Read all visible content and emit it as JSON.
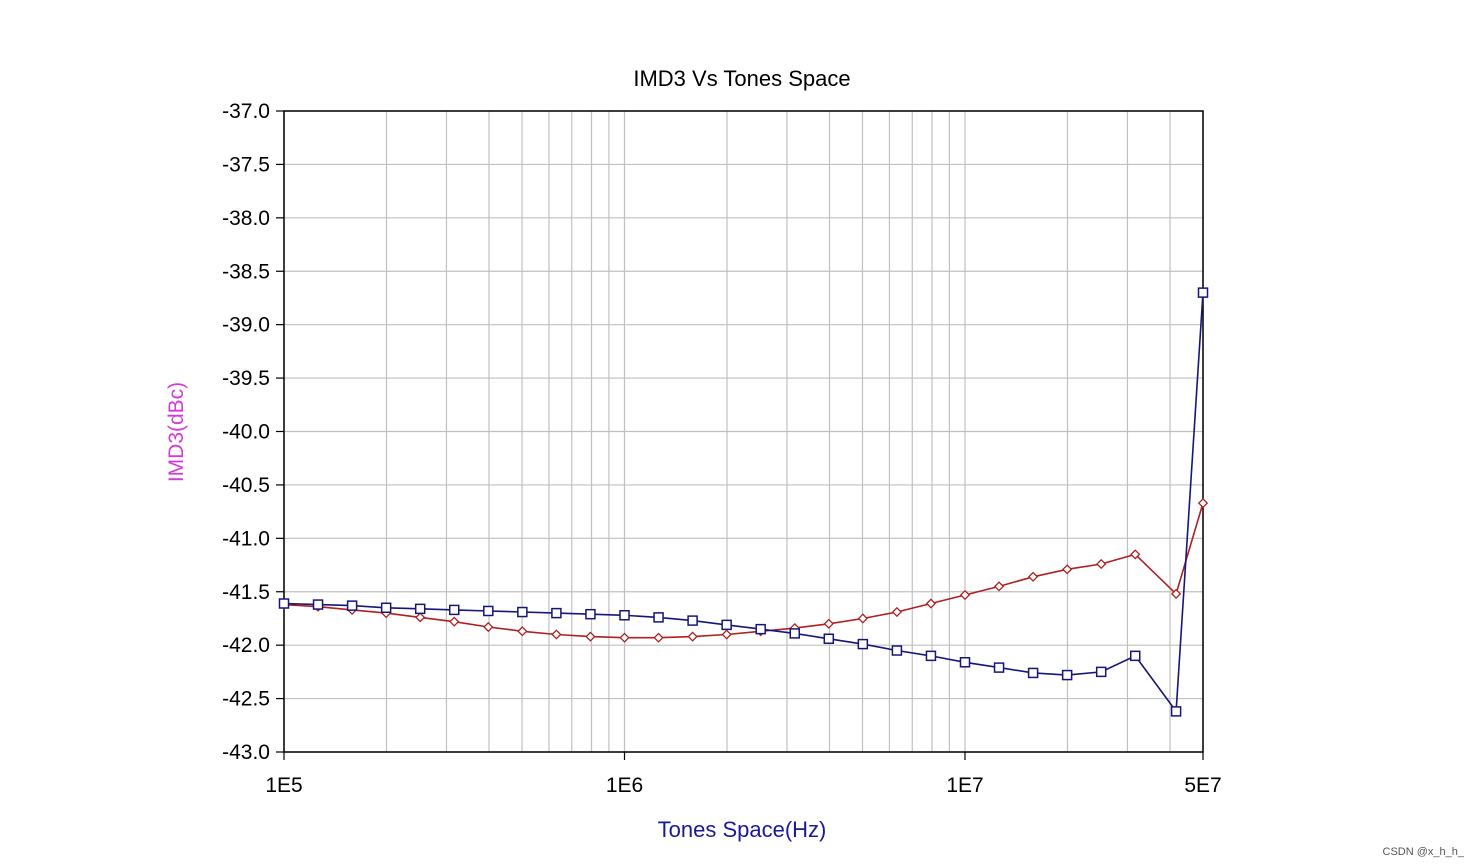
{
  "chart_data": {
    "type": "line",
    "title": "IMD3 Vs Tones Space",
    "xlabel": "Tones Space(Hz)",
    "ylabel": "IMD3(dBc)",
    "x_scale": "log",
    "xlim": [
      100000,
      50000000
    ],
    "ylim": [
      -43.0,
      -37.0
    ],
    "y_ticks": [
      "-37.0",
      "-37.5",
      "-38.0",
      "-38.5",
      "-39.0",
      "-39.5",
      "-40.0",
      "-40.5",
      "-41.0",
      "-41.5",
      "-42.0",
      "-42.5",
      "-43.0"
    ],
    "x_ticks": [
      {
        "value": 100000,
        "label": "1E5"
      },
      {
        "value": 1000000,
        "label": "1E6"
      },
      {
        "value": 10000000,
        "label": "1E7"
      },
      {
        "value": 50000000,
        "label": "5E7"
      }
    ],
    "grid": true,
    "colors": {
      "red_series": "#b02020",
      "blue_series": "#16167a",
      "ylabel": "#d63ad6",
      "xlabel": "#1a1a99",
      "grid": "#c0c0c0"
    },
    "series": [
      {
        "marker": "diamond",
        "color": "#b02020",
        "points": [
          [
            100000,
            -41.62
          ],
          [
            125893,
            -41.64
          ],
          [
            158489,
            -41.67
          ],
          [
            199526,
            -41.7
          ],
          [
            251189,
            -41.74
          ],
          [
            316228,
            -41.78
          ],
          [
            398107,
            -41.83
          ],
          [
            501187,
            -41.87
          ],
          [
            630957,
            -41.9
          ],
          [
            794328,
            -41.92
          ],
          [
            1000000,
            -41.93
          ],
          [
            1258925,
            -41.93
          ],
          [
            1584893,
            -41.92
          ],
          [
            1995262,
            -41.9
          ],
          [
            2511886,
            -41.87
          ],
          [
            3162278,
            -41.84
          ],
          [
            3981072,
            -41.8
          ],
          [
            5011872,
            -41.75
          ],
          [
            6309573,
            -41.69
          ],
          [
            7943282,
            -41.61
          ],
          [
            10000000,
            -41.53
          ],
          [
            12589254,
            -41.45
          ],
          [
            15848932,
            -41.36
          ],
          [
            19952623,
            -41.29
          ],
          [
            25118864,
            -41.24
          ],
          [
            31622777,
            -41.15
          ],
          [
            41686938,
            -41.52
          ],
          [
            50000000,
            -40.67
          ]
        ]
      },
      {
        "marker": "square",
        "color": "#16167a",
        "points": [
          [
            100000,
            -41.61
          ],
          [
            125893,
            -41.62
          ],
          [
            158489,
            -41.63
          ],
          [
            199526,
            -41.65
          ],
          [
            251189,
            -41.66
          ],
          [
            316228,
            -41.67
          ],
          [
            398107,
            -41.68
          ],
          [
            501187,
            -41.69
          ],
          [
            630957,
            -41.7
          ],
          [
            794328,
            -41.71
          ],
          [
            1000000,
            -41.72
          ],
          [
            1258925,
            -41.74
          ],
          [
            1584893,
            -41.77
          ],
          [
            1995262,
            -41.81
          ],
          [
            2511886,
            -41.85
          ],
          [
            3162278,
            -41.89
          ],
          [
            3981072,
            -41.94
          ],
          [
            5011872,
            -41.99
          ],
          [
            6309573,
            -42.05
          ],
          [
            7943282,
            -42.1
          ],
          [
            10000000,
            -42.16
          ],
          [
            12589254,
            -42.21
          ],
          [
            15848932,
            -42.26
          ],
          [
            19952623,
            -42.28
          ],
          [
            25118864,
            -42.25
          ],
          [
            31622777,
            -42.1
          ],
          [
            41686938,
            -42.62
          ],
          [
            50000000,
            -38.7
          ]
        ]
      }
    ]
  },
  "watermark": "CSDN @x_h_h_"
}
